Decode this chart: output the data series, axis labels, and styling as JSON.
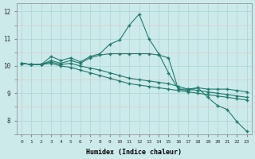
{
  "xlabel": "Humidex (Indice chaleur)",
  "bg_color": "#cceaea",
  "grid_color": "#b0d8d8",
  "line_color": "#217a6e",
  "xlim": [
    -0.5,
    23.5
  ],
  "ylim": [
    7.5,
    12.3
  ],
  "xticks": [
    0,
    1,
    2,
    3,
    4,
    5,
    6,
    7,
    8,
    9,
    10,
    11,
    12,
    13,
    14,
    15,
    16,
    17,
    18,
    19,
    20,
    21,
    22,
    23
  ],
  "yticks": [
    8,
    9,
    10,
    11,
    12
  ],
  "series": [
    [
      10.1,
      10.05,
      10.05,
      10.35,
      10.2,
      10.3,
      10.15,
      10.35,
      10.45,
      10.8,
      10.95,
      11.5,
      11.9,
      11.0,
      10.45,
      9.75,
      9.15,
      9.15,
      9.2,
      8.85,
      8.55,
      8.4,
      7.95,
      7.6
    ],
    [
      10.1,
      10.05,
      10.05,
      10.2,
      10.1,
      10.2,
      10.1,
      10.3,
      10.4,
      10.45,
      10.45,
      10.45,
      10.45,
      10.45,
      10.4,
      10.3,
      9.15,
      9.1,
      9.2,
      9.15,
      9.15,
      9.15,
      9.1,
      9.05
    ],
    [
      10.1,
      10.05,
      10.05,
      10.15,
      10.05,
      10.1,
      10.0,
      9.92,
      9.85,
      9.75,
      9.65,
      9.55,
      9.5,
      9.45,
      9.4,
      9.35,
      9.25,
      9.15,
      9.1,
      9.05,
      9.0,
      8.95,
      8.9,
      8.85
    ],
    [
      10.1,
      10.05,
      10.05,
      10.1,
      10.0,
      9.95,
      9.85,
      9.75,
      9.65,
      9.55,
      9.45,
      9.35,
      9.3,
      9.25,
      9.2,
      9.15,
      9.1,
      9.05,
      9.0,
      8.95,
      8.9,
      8.85,
      8.8,
      8.75
    ]
  ]
}
